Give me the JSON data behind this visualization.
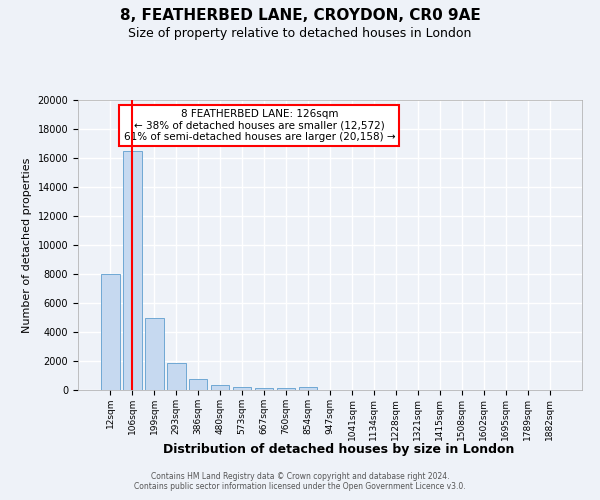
{
  "title_line1": "8, FEATHERBED LANE, CROYDON, CR0 9AE",
  "title_line2": "Size of property relative to detached houses in London",
  "xlabel": "Distribution of detached houses by size in London",
  "ylabel": "Number of detached properties",
  "categories": [
    "12sqm",
    "106sqm",
    "199sqm",
    "293sqm",
    "386sqm",
    "480sqm",
    "573sqm",
    "667sqm",
    "760sqm",
    "854sqm",
    "947sqm",
    "1041sqm",
    "1134sqm",
    "1228sqm",
    "1321sqm",
    "1415sqm",
    "1508sqm",
    "1602sqm",
    "1695sqm",
    "1789sqm",
    "1882sqm"
  ],
  "values": [
    8000,
    16500,
    5000,
    1850,
    750,
    350,
    200,
    150,
    130,
    200,
    0,
    0,
    0,
    0,
    0,
    0,
    0,
    0,
    0,
    0,
    0
  ],
  "bar_color": "#c6d9f0",
  "bar_edge_color": "#6fa8d4",
  "red_line_index": 1.0,
  "annotation_text": "8 FEATHERBED LANE: 126sqm\n← 38% of detached houses are smaller (12,572)\n61% of semi-detached houses are larger (20,158) →",
  "annotation_box_color": "white",
  "annotation_box_edge": "red",
  "ylim": [
    0,
    20000
  ],
  "yticks": [
    0,
    2000,
    4000,
    6000,
    8000,
    10000,
    12000,
    14000,
    16000,
    18000,
    20000
  ],
  "footer_line1": "Contains HM Land Registry data © Crown copyright and database right 2024.",
  "footer_line2": "Contains public sector information licensed under the Open Government Licence v3.0.",
  "bg_color": "#eef2f8",
  "grid_color": "white"
}
